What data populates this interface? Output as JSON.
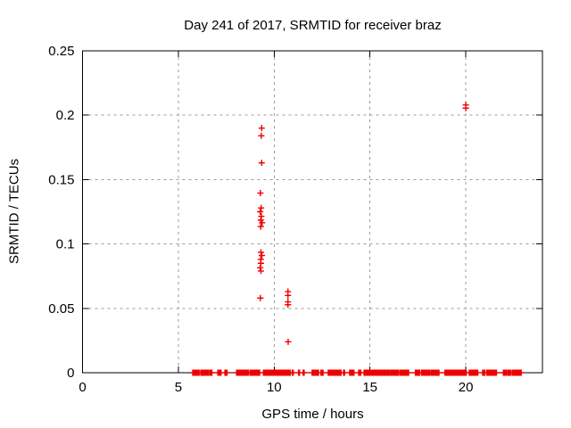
{
  "chart_data": {
    "type": "scatter",
    "title": "Day 241 of 2017, SRMTID for receiver braz",
    "xlabel": "GPS time / hours",
    "ylabel": "SRMTID / TECUs",
    "xlim": [
      0,
      24
    ],
    "ylim": [
      0,
      0.25
    ],
    "xticks": [
      0,
      5,
      10,
      15,
      20
    ],
    "xtick_labels": [
      "0",
      "5",
      "10",
      "15",
      "20"
    ],
    "yticks": [
      0,
      0.05,
      0.1,
      0.15,
      0.2,
      0.25
    ],
    "ytick_labels": [
      "0",
      "0.05",
      "0.1",
      "0.15",
      "0.2",
      "0.25"
    ],
    "grid": true,
    "grid_style": "dashed",
    "grid_color": "#9b9b9b",
    "frame_color": "#000000",
    "marker": "plus",
    "marker_color": "#ee0000",
    "legend": "none",
    "series": [
      {
        "name": "SRMTID",
        "points": [
          [
            9.35,
            0.19
          ],
          [
            9.33,
            0.184
          ],
          [
            9.35,
            0.163
          ],
          [
            9.28,
            0.1395
          ],
          [
            9.32,
            0.128
          ],
          [
            9.27,
            0.125
          ],
          [
            9.33,
            0.1215
          ],
          [
            9.3,
            0.1185
          ],
          [
            9.37,
            0.1165
          ],
          [
            9.3,
            0.1135
          ],
          [
            9.31,
            0.0935
          ],
          [
            9.36,
            0.091
          ],
          [
            9.3,
            0.088
          ],
          [
            9.31,
            0.085
          ],
          [
            9.27,
            0.0815
          ],
          [
            9.31,
            0.079
          ],
          [
            9.28,
            0.058
          ],
          [
            10.72,
            0.063
          ],
          [
            10.72,
            0.06
          ],
          [
            10.72,
            0.055
          ],
          [
            10.72,
            0.0528
          ],
          [
            10.73,
            0.024
          ],
          [
            20.0,
            0.208
          ],
          [
            20.0,
            0.2055
          ]
        ]
      }
    ],
    "baseline_value": 0,
    "baseline_segments_hours": [
      [
        5.75,
        6.1
      ],
      [
        6.17,
        6.34
      ],
      [
        6.4,
        6.57
      ],
      [
        6.64,
        6.78
      ],
      [
        7.06,
        7.28
      ],
      [
        7.43,
        7.57
      ],
      [
        8.04,
        8.68
      ],
      [
        8.74,
        9.29
      ],
      [
        9.44,
        9.68
      ],
      [
        9.72,
        10.85
      ],
      [
        10.94,
        11.04
      ],
      [
        11.27,
        11.33
      ],
      [
        11.51,
        11.57
      ],
      [
        11.98,
        12.35
      ],
      [
        12.44,
        12.58
      ],
      [
        12.82,
        13.52
      ],
      [
        13.62,
        13.71
      ],
      [
        13.94,
        14.18
      ],
      [
        14.41,
        14.55
      ],
      [
        14.69,
        16.05
      ],
      [
        16.1,
        16.33
      ],
      [
        16.38,
        16.52
      ],
      [
        16.57,
        17.04
      ],
      [
        17.37,
        17.6
      ],
      [
        17.69,
        18.16
      ],
      [
        18.21,
        18.63
      ],
      [
        18.91,
        20.08
      ],
      [
        20.18,
        20.65
      ],
      [
        20.88,
        21.03
      ],
      [
        21.09,
        21.21
      ],
      [
        21.26,
        21.44
      ],
      [
        21.49,
        21.63
      ],
      [
        21.96,
        22.15
      ],
      [
        22.2,
        22.4
      ],
      [
        22.45,
        22.75
      ],
      [
        22.78,
        22.9
      ]
    ]
  }
}
